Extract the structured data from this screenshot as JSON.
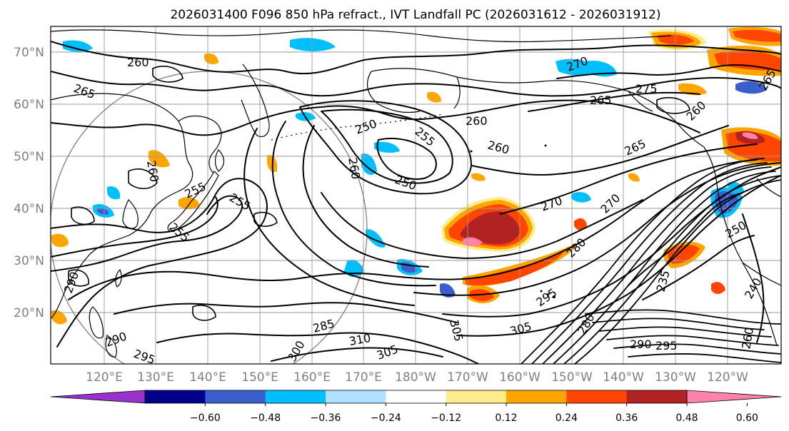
{
  "title": "2026031400 F096 850 hPa refract., IVT Landfall PC (2026031612 - 2026031912)",
  "lat_labels": [
    "70°N",
    "60°N",
    "50°N",
    "40°N",
    "30°N",
    "20°N"
  ],
  "lon_labels": [
    "120°E",
    "130°E",
    "140°E",
    "150°E",
    "160°E",
    "170°E",
    "180°W",
    "170°W",
    "160°W",
    "150°W",
    "140°W",
    "130°W",
    "120°W"
  ],
  "colorbar": {
    "colors": [
      "#9932CC",
      "#00008B",
      "#3A5FCD",
      "#00BFFF",
      "#B0E2FF",
      "#FFFFFF",
      "#FFEC8B",
      "#FFA500",
      "#FF4500",
      "#B22222",
      "#FF82AB"
    ],
    "ticks": [
      "−0.60",
      "−0.48",
      "−0.36",
      "−0.24",
      "−0.12",
      "0.12",
      "0.24",
      "0.36",
      "0.48",
      "0.60"
    ]
  },
  "contour_labels": [
    {
      "text": "260"
    },
    {
      "text": "265"
    },
    {
      "text": "250"
    },
    {
      "text": "255"
    },
    {
      "text": "250"
    },
    {
      "text": "260"
    },
    {
      "text": "260"
    },
    {
      "text": "260"
    },
    {
      "text": "265"
    },
    {
      "text": "265"
    },
    {
      "text": "270"
    },
    {
      "text": "260"
    },
    {
      "text": "255"
    },
    {
      "text": "255"
    },
    {
      "text": "255"
    },
    {
      "text": "260"
    },
    {
      "text": "270"
    },
    {
      "text": "280"
    },
    {
      "text": "275"
    },
    {
      "text": "270"
    },
    {
      "text": "290"
    },
    {
      "text": "285"
    },
    {
      "text": "310"
    },
    {
      "text": "305"
    },
    {
      "text": "305"
    },
    {
      "text": "305"
    },
    {
      "text": "295"
    },
    {
      "text": "280"
    },
    {
      "text": "290"
    },
    {
      "text": "295"
    },
    {
      "text": "235"
    },
    {
      "text": "240"
    },
    {
      "text": "260"
    },
    {
      "text": "250"
    },
    {
      "text": "290"
    },
    {
      "text": "295"
    },
    {
      "text": "300"
    },
    {
      "text": "265"
    }
  ]
}
